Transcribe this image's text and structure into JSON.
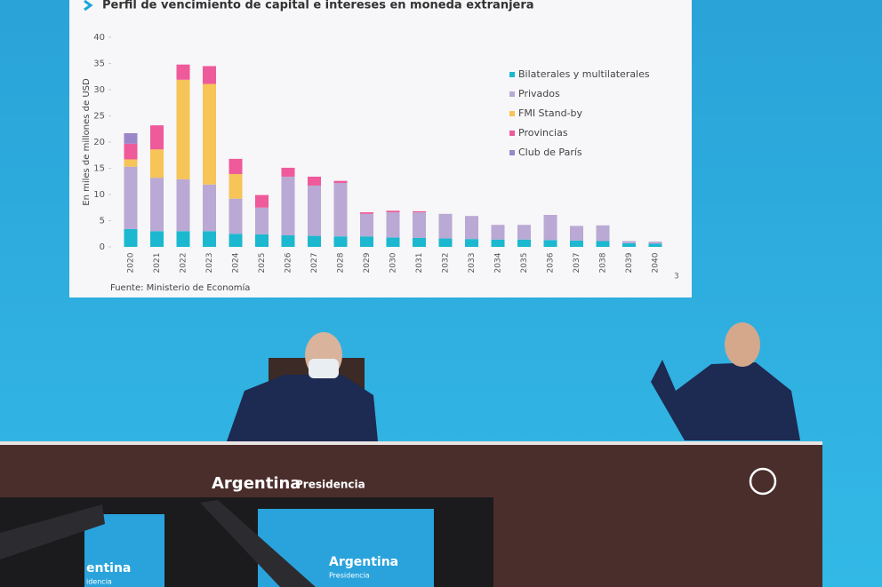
{
  "chart_data": {
    "type": "stacked-bar",
    "title": "Perfil de vencimiento de capital e intereses en moneda extranjera",
    "y_label": "En miles de millones de USD",
    "source": "Fuente: Ministerio de Economía",
    "page_number": "3",
    "categories": [
      "2020",
      "2021",
      "2022",
      "2023",
      "2024",
      "2025",
      "2026",
      "2027",
      "2028",
      "2029",
      "2030",
      "2031",
      "2032",
      "2033",
      "2034",
      "2035",
      "2036",
      "2037",
      "2038",
      "2039",
      "2040"
    ],
    "series": [
      {
        "name": "Bilaterales y multilaterales",
        "color": "#1bb8cf",
        "values": [
          3.4,
          3,
          3,
          3,
          2.5,
          2.4,
          2.2,
          2.1,
          2,
          2,
          1.8,
          1.7,
          1.6,
          1.5,
          1.4,
          1.4,
          1.3,
          1.2,
          1.1,
          0.7,
          0.6
        ]
      },
      {
        "name": "Privados",
        "color": "#b9a9d4",
        "values": [
          11.9,
          10.2,
          9.9,
          8.9,
          6.7,
          5.1,
          11.2,
          9.6,
          10.2,
          4.3,
          4.8,
          4.9,
          4.7,
          4.4,
          2.8,
          2.8,
          4.8,
          2.8,
          3,
          0.4,
          0.4
        ]
      },
      {
        "name": "FMI Stand-by",
        "color": "#f6c457",
        "values": [
          1.4,
          5.4,
          19,
          19.2,
          4.7,
          0,
          0,
          0,
          0,
          0,
          0,
          0,
          0,
          0,
          0,
          0,
          0,
          0,
          0,
          0,
          0
        ]
      },
      {
        "name": "Provincias",
        "color": "#ee5a9a",
        "values": [
          3,
          4.6,
          2.9,
          3.4,
          2.9,
          2.4,
          1.7,
          1.7,
          0.4,
          0.3,
          0.3,
          0.2,
          0,
          0,
          0,
          0,
          0,
          0,
          0,
          0,
          0
        ]
      },
      {
        "name": "Club de París",
        "color": "#9a86c9",
        "values": [
          2,
          0,
          0,
          0,
          0,
          0,
          0,
          0,
          0,
          0,
          0,
          0,
          0,
          0,
          0,
          0,
          0,
          0,
          0,
          0,
          0
        ]
      }
    ],
    "ylim": [
      0,
      40
    ],
    "yticks": [
      0,
      5,
      10,
      15,
      20,
      25,
      30,
      35,
      40
    ],
    "grid": false,
    "legend": "right"
  },
  "scene": {
    "desk_brand": "Argentina",
    "desk_sub": "Presidencia",
    "sign_brand": "Argentina",
    "sign_sub": "Presidencia",
    "left_sign_brand": "entina",
    "left_sign_sub": "idencia"
  }
}
